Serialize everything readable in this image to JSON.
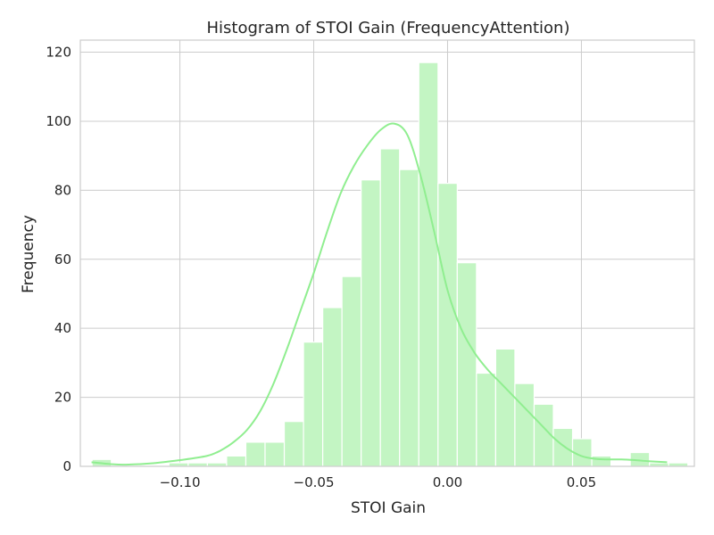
{
  "chart_data": {
    "type": "bar",
    "title": "Histogram of STOI Gain (FrequencyAttention)",
    "xlabel": "STOI Gain",
    "ylabel": "Frequency",
    "xlim": [
      -0.1372,
      0.0922
    ],
    "ylim": [
      0,
      123.5
    ],
    "xticks": [
      -0.1,
      -0.05,
      0.0,
      0.05
    ],
    "xtick_labels": [
      "−0.10",
      "−0.05",
      "0.00",
      "0.05"
    ],
    "yticks": [
      0,
      20,
      40,
      60,
      80,
      100,
      120
    ],
    "ytick_labels": [
      "0",
      "20",
      "40",
      "60",
      "80",
      "100",
      "120"
    ],
    "grid": true,
    "legend": "none",
    "bin_start": -0.1328,
    "bin_width": 0.00718,
    "counts": [
      2,
      0,
      0,
      0,
      1,
      1,
      1,
      3,
      7,
      7,
      13,
      36,
      46,
      55,
      83,
      92,
      86,
      117,
      82,
      59,
      27,
      34,
      24,
      18,
      11,
      8,
      3,
      0,
      4,
      1,
      1
    ],
    "kde": {
      "x": [
        -0.133,
        -0.125,
        -0.12,
        -0.11,
        -0.1,
        -0.09,
        -0.085,
        -0.08,
        -0.075,
        -0.07,
        -0.065,
        -0.06,
        -0.055,
        -0.05,
        -0.045,
        -0.04,
        -0.035,
        -0.03,
        -0.025,
        -0.02,
        -0.015,
        -0.01,
        -0.005,
        0.0,
        0.005,
        0.01,
        0.015,
        0.02,
        0.025,
        0.03,
        0.035,
        0.04,
        0.045,
        0.05,
        0.055,
        0.06,
        0.065,
        0.07,
        0.075,
        0.082
      ],
      "y": [
        1.2,
        0.6,
        0.5,
        0.9,
        1.8,
        3.0,
        4.5,
        7.0,
        10.5,
        16.0,
        24.0,
        34.0,
        45.0,
        56.0,
        68.0,
        79.0,
        87.0,
        93.0,
        97.5,
        99.3,
        96.0,
        84.0,
        68.0,
        51.0,
        40.0,
        33.0,
        28.0,
        24.0,
        20.0,
        16.0,
        12.0,
        8.0,
        5.0,
        3.0,
        2.2,
        2.0,
        2.0,
        1.8,
        1.5,
        1.2
      ]
    },
    "colors": {
      "bar_fill": "#c3f5c3",
      "kde_line": "#90ee90"
    }
  }
}
